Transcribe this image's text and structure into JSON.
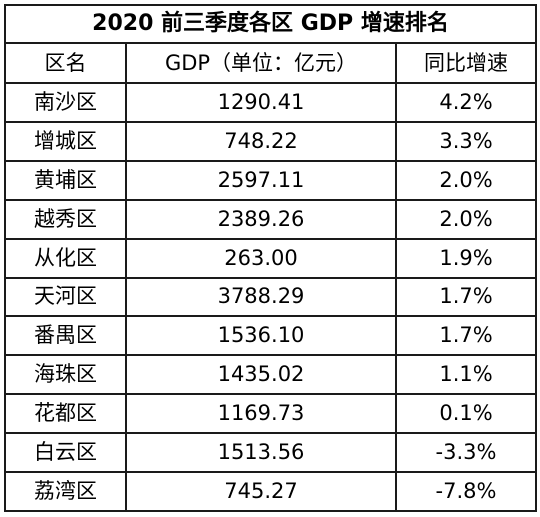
{
  "title": "2020 前三季度各区 GDP 增速排名",
  "columns": [
    "区名",
    "GDP（单位：亿元）",
    "同比增速"
  ],
  "rows": [
    {
      "district": "南沙区",
      "gdp": "1290.41",
      "growth": "4.2%"
    },
    {
      "district": "增城区",
      "gdp": "748.22",
      "growth": "3.3%"
    },
    {
      "district": "黄埔区",
      "gdp": "2597.11",
      "growth": "2.0%"
    },
    {
      "district": "越秀区",
      "gdp": "2389.26",
      "growth": "2.0%"
    },
    {
      "district": "从化区",
      "gdp": "263.00",
      "growth": "1.9%"
    },
    {
      "district": "天河区",
      "gdp": "3788.29",
      "growth": "1.7%"
    },
    {
      "district": "番禺区",
      "gdp": "1536.10",
      "growth": "1.7%"
    },
    {
      "district": "海珠区",
      "gdp": "1435.02",
      "growth": "1.1%"
    },
    {
      "district": "花都区",
      "gdp": "1169.73",
      "growth": "0.1%"
    },
    {
      "district": "白云区",
      "gdp": "1513.56",
      "growth": "-3.3%"
    },
    {
      "district": "荔湾区",
      "gdp": "745.27",
      "growth": "-7.8%"
    }
  ]
}
